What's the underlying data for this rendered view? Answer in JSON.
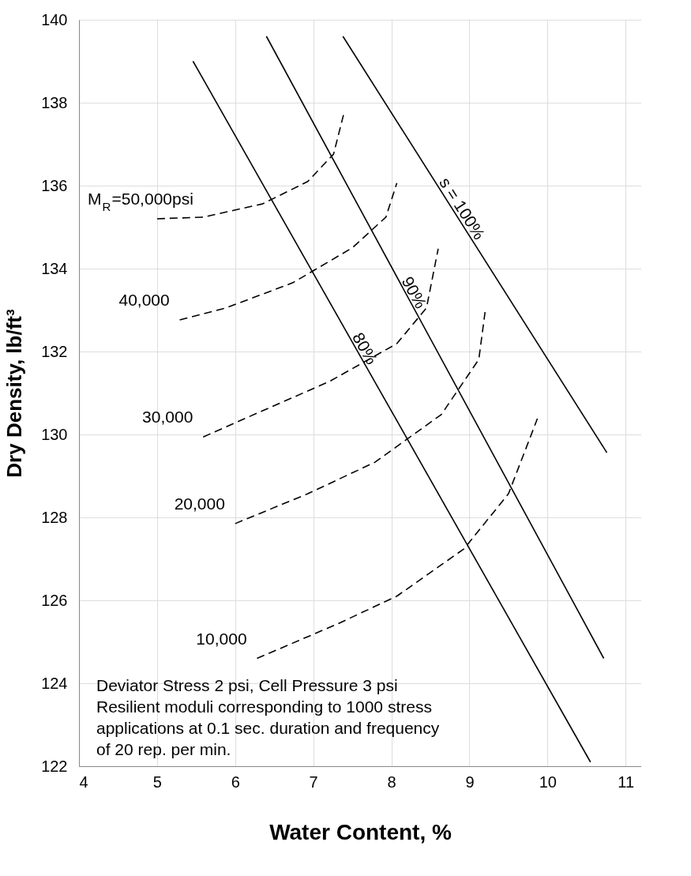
{
  "chart_data": {
    "type": "line",
    "xlabel": "Water Content, %",
    "ylabel": "Dry Density, lb/ft³",
    "xlim": [
      4,
      11.2
    ],
    "xticks": [
      4,
      5,
      6,
      7,
      8,
      9,
      10,
      11
    ],
    "ylim": [
      122,
      140
    ],
    "yticks": [
      122,
      124,
      126,
      128,
      130,
      132,
      134,
      136,
      138,
      140
    ],
    "grid": true,
    "series": [
      {
        "name": "80%",
        "color": "#000000",
        "line_style": "solid",
        "x": [
          5.46,
          10.55
        ],
        "values": [
          139.0,
          122.1
        ]
      },
      {
        "name": "90%",
        "color": "#000000",
        "line_style": "solid",
        "x": [
          6.4,
          10.72
        ],
        "values": [
          139.6,
          124.6
        ]
      },
      {
        "name": "s = 100%",
        "color": "#000000",
        "line_style": "solid",
        "x": [
          7.38,
          10.76
        ],
        "values": [
          139.6,
          129.56
        ]
      },
      {
        "name": "M$_{R}$=50,000psi",
        "color": "#000000",
        "line_style": "dashed",
        "x": [
          5.0,
          5.59,
          6.35,
          6.93,
          7.26,
          7.4
        ],
        "values": [
          135.2,
          135.24,
          135.56,
          136.1,
          136.76,
          137.8
        ]
      },
      {
        "name": "40,000",
        "color": "#000000",
        "line_style": "dashed",
        "x": [
          5.29,
          5.88,
          6.74,
          7.5,
          7.93,
          8.07
        ],
        "values": [
          132.76,
          133.05,
          133.66,
          134.5,
          135.24,
          136.06
        ]
      },
      {
        "name": "30,000",
        "color": "#000000",
        "line_style": "dashed",
        "x": [
          5.59,
          6.35,
          7.21,
          8.07,
          8.45,
          8.6
        ],
        "values": [
          129.94,
          130.57,
          131.28,
          132.19,
          133.05,
          134.48
        ]
      },
      {
        "name": "20,000",
        "color": "#000000",
        "line_style": "dashed",
        "x": [
          6.0,
          6.93,
          7.79,
          8.64,
          9.12,
          9.2
        ],
        "values": [
          127.85,
          128.57,
          129.33,
          130.48,
          131.81,
          132.95
        ]
      },
      {
        "name": "10,000",
        "color": "#000000",
        "line_style": "dashed",
        "x": [
          6.28,
          7.31,
          8.07,
          8.93,
          9.5,
          9.87
        ],
        "values": [
          124.6,
          125.43,
          126.1,
          127.24,
          128.57,
          130.38
        ]
      }
    ],
    "annotations": [
      "Deviator Stress  2 psi,  Cell Pressure  3 psi",
      "Resilient moduli corresponding to 1000 stress",
      "applications at 0.1 sec. duration and frequency",
      "of 20 rep. per min."
    ]
  }
}
